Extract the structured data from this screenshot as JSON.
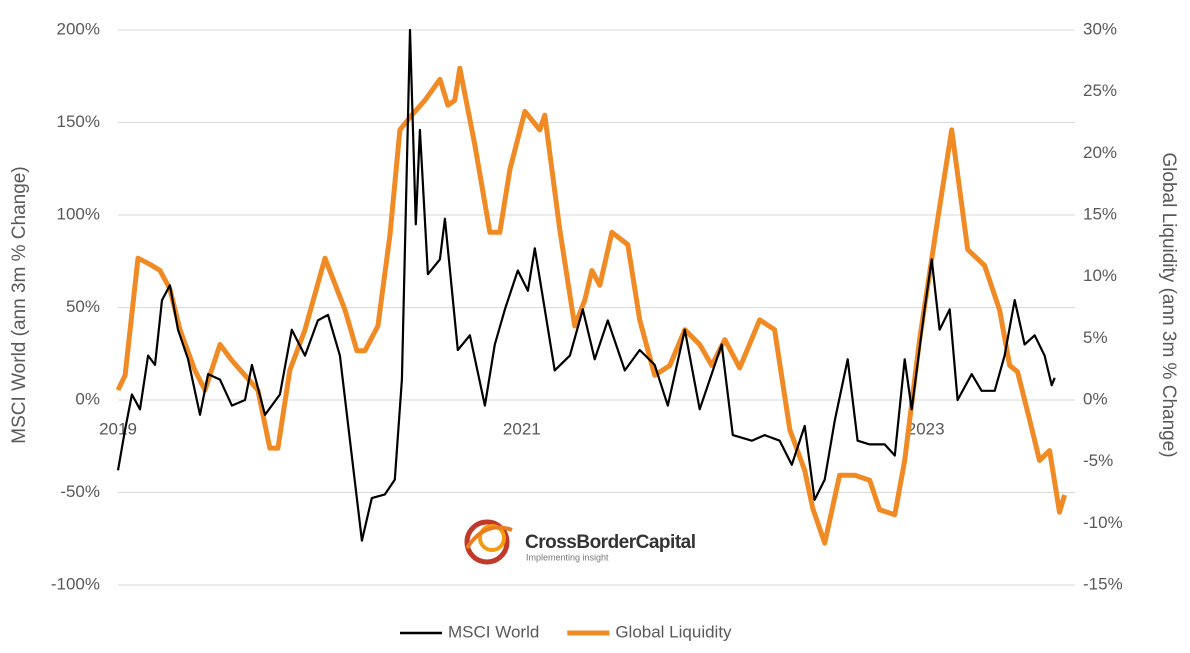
{
  "chart_data": {
    "type": "line",
    "y_label": "MSCI World (ann 3m % Change)",
    "y2_label": "Global Liquidity (ann 3m % Change)",
    "xlim": [
      2019,
      2023.7
    ],
    "xticks": [
      2019,
      2021,
      2023
    ],
    "ylim": [
      -100,
      200
    ],
    "yticks": [
      {
        "value": -100,
        "label": "-100%"
      },
      {
        "value": -50,
        "label": "-50%"
      },
      {
        "value": 0,
        "label": "0%"
      },
      {
        "value": 50,
        "label": "50%"
      },
      {
        "value": 100,
        "label": "100%"
      },
      {
        "value": 150,
        "label": "150%"
      },
      {
        "value": 200,
        "label": "200%"
      }
    ],
    "y2lim": [
      -15,
      30
    ],
    "y2ticks": [
      {
        "value": -15,
        "label": "-15%"
      },
      {
        "value": -10,
        "label": "-10%"
      },
      {
        "value": -5,
        "label": "-5%"
      },
      {
        "value": 0,
        "label": "0%"
      },
      {
        "value": 5,
        "label": "5%"
      },
      {
        "value": 10,
        "label": "10%"
      },
      {
        "value": 15,
        "label": "15%"
      },
      {
        "value": 20,
        "label": "20%"
      },
      {
        "value": 25,
        "label": "25%"
      },
      {
        "value": 30,
        "label": "30%"
      }
    ],
    "grid": true,
    "legend": "bottom",
    "series": [
      {
        "name": "MSCI World",
        "color": "#000000",
        "axis": "y",
        "x": [
          2019.0,
          2019.035,
          2019.069,
          2019.109,
          2019.149,
          2019.183,
          2019.218,
          2019.257,
          2019.297,
          2019.347,
          2019.406,
          2019.446,
          2019.505,
          2019.564,
          2019.629,
          2019.663,
          2019.728,
          2019.802,
          2019.861,
          2019.926,
          2019.99,
          2020.04,
          2020.099,
          2020.149,
          2020.208,
          2020.257,
          2020.322,
          2020.371,
          2020.406,
          2020.446,
          2020.475,
          2020.495,
          2020.535,
          2020.594,
          2020.619,
          2020.683,
          2020.743,
          2020.817,
          2020.866,
          2020.916,
          2020.98,
          2021.03,
          2021.064,
          2021.114,
          2021.163,
          2021.238,
          2021.302,
          2021.361,
          2021.426,
          2021.51,
          2021.584,
          2021.658,
          2021.723,
          2021.807,
          2021.881,
          2021.99,
          2022.045,
          2022.139,
          2022.203,
          2022.277,
          2022.337,
          2022.401,
          2022.45,
          2022.5,
          2022.55,
          2022.614,
          2022.663,
          2022.723,
          2022.797,
          2022.847,
          2022.896,
          2022.931,
          2022.995,
          2023.03,
          2023.069,
          2023.119,
          2023.158,
          2023.228,
          2023.277,
          2023.342,
          2023.391,
          2023.441,
          2023.49,
          2023.54,
          2023.589,
          2023.624,
          2023.639
        ],
        "values": [
          -38,
          -16,
          3,
          -5,
          24,
          19,
          54,
          62,
          38,
          22,
          -8,
          14,
          11,
          -3,
          0,
          19,
          -8,
          3,
          38,
          24,
          43,
          46,
          24,
          -22,
          -76,
          -53,
          -51,
          -43,
          11,
          200,
          95,
          146,
          68,
          76,
          98,
          27,
          35,
          -3,
          30,
          49,
          70,
          59,
          82,
          49,
          16,
          24,
          49,
          22,
          43,
          16,
          27,
          19,
          -3,
          38,
          -5,
          30,
          -19,
          -22,
          -19,
          -22,
          -35,
          -14,
          -54,
          -43,
          -11,
          22,
          -22,
          -24,
          -24,
          -30,
          22,
          -5,
          49,
          76,
          38,
          49,
          0,
          14,
          5,
          5,
          24,
          54,
          30,
          35,
          24,
          8,
          12
        ]
      },
      {
        "name": "Global Liquidity",
        "color": "#f08a24",
        "axis": "y2",
        "x": [
          2019.0,
          2019.035,
          2019.099,
          2019.158,
          2019.208,
          2019.257,
          2019.307,
          2019.381,
          2019.431,
          2019.505,
          2019.564,
          2019.629,
          2019.693,
          2019.752,
          2019.792,
          2019.851,
          2019.926,
          2020.025,
          2020.124,
          2020.183,
          2020.223,
          2020.287,
          2020.347,
          2020.396,
          2020.455,
          2020.52,
          2020.594,
          2020.634,
          2020.668,
          2020.693,
          2020.767,
          2020.842,
          2020.891,
          2020.941,
          2021.015,
          2021.089,
          2021.114,
          2021.188,
          2021.262,
          2021.312,
          2021.347,
          2021.386,
          2021.446,
          2021.525,
          2021.584,
          2021.658,
          2021.733,
          2021.807,
          2021.881,
          2021.941,
          2022.005,
          2022.079,
          2022.178,
          2022.252,
          2022.327,
          2022.401,
          2022.441,
          2022.5,
          2022.574,
          2022.649,
          2022.723,
          2022.772,
          2022.847,
          2022.896,
          2022.97,
          2023.059,
          2023.129,
          2023.208,
          2023.292,
          2023.366,
          2023.416,
          2023.455,
          2023.515,
          2023.564,
          2023.614,
          2023.663,
          2023.688
        ],
        "values": [
          0.8,
          2,
          11.5,
          11,
          10.5,
          9,
          5.7,
          2.4,
          0.8,
          4.5,
          3.2,
          2,
          0.8,
          -3.9,
          -3.9,
          2.4,
          5.7,
          11.5,
          7.3,
          4,
          4,
          6,
          13.4,
          21.9,
          23.1,
          24.3,
          26,
          23.9,
          24.3,
          26.9,
          20.7,
          13.6,
          13.6,
          18.7,
          23.4,
          21.9,
          23.1,
          13.8,
          6,
          8.1,
          10.5,
          9.3,
          13.6,
          12.6,
          6.5,
          2,
          2.8,
          5.7,
          4.5,
          2.8,
          4.9,
          2.6,
          6.5,
          5.7,
          -2.4,
          -5.7,
          -8.8,
          -11.6,
          -6.1,
          -6.1,
          -6.5,
          -8.9,
          -9.3,
          -4.9,
          4.9,
          14.6,
          21.9,
          12.2,
          10.9,
          7.3,
          2.8,
          2.3,
          -1.6,
          -4.9,
          -4.1,
          -9.1,
          -7.7
        ]
      }
    ]
  },
  "logo": {
    "name": "CrossBorderCapital",
    "tagline": "Implementing insight"
  }
}
